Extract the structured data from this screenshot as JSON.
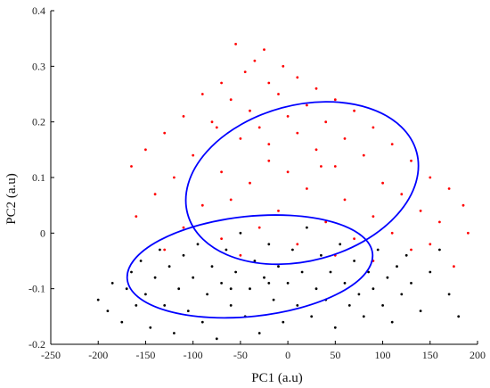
{
  "chart_data": {
    "type": "scatter",
    "title": "",
    "xlabel": "PC1 (a.u)",
    "ylabel": "PC2 (a.u)",
    "xlim": [
      -250,
      200
    ],
    "ylim": [
      -0.2,
      0.4
    ],
    "xticks": [
      -250,
      -200,
      -150,
      -100,
      -50,
      0,
      50,
      100,
      150,
      200
    ],
    "xtick_labels": [
      "-250",
      "-200",
      "-150",
      "-100",
      "-50",
      "0",
      "50",
      "100",
      "150",
      "200"
    ],
    "yticks": [
      -0.2,
      -0.1,
      0,
      0.1,
      0.2,
      0.3,
      0.4
    ],
    "ytick_labels": [
      "-0.2",
      "-0.1",
      "0",
      "0.1",
      "0.2",
      "0.3",
      "0.4"
    ],
    "grid": false,
    "legend": "none",
    "series": [
      {
        "color": "#ff0000",
        "approx_center": [
          10,
          0.08
        ],
        "approx_x_range": [
          -170,
          195
        ],
        "approx_y_range": [
          -0.05,
          0.35
        ],
        "points": [
          [
            -55,
            0.34
          ],
          [
            -25,
            0.33
          ],
          [
            -35,
            0.31
          ],
          [
            -5,
            0.3
          ],
          [
            -45,
            0.29
          ],
          [
            10,
            0.28
          ],
          [
            -70,
            0.27
          ],
          [
            -20,
            0.27
          ],
          [
            30,
            0.26
          ],
          [
            -90,
            0.25
          ],
          [
            -10,
            0.25
          ],
          [
            50,
            0.24
          ],
          [
            -60,
            0.24
          ],
          [
            20,
            0.23
          ],
          [
            -40,
            0.22
          ],
          [
            70,
            0.22
          ],
          [
            0,
            0.21
          ],
          [
            -110,
            0.21
          ],
          [
            40,
            0.2
          ],
          [
            -80,
            0.2
          ],
          [
            90,
            0.19
          ],
          [
            -30,
            0.19
          ],
          [
            10,
            0.18
          ],
          [
            -130,
            0.18
          ],
          [
            60,
            0.17
          ],
          [
            -50,
            0.17
          ],
          [
            110,
            0.16
          ],
          [
            -150,
            0.15
          ],
          [
            30,
            0.15
          ],
          [
            -100,
            0.14
          ],
          [
            80,
            0.14
          ],
          [
            -20,
            0.13
          ],
          [
            130,
            0.13
          ],
          [
            -165,
            0.12
          ],
          [
            50,
            0.12
          ],
          [
            -70,
            0.11
          ],
          [
            0,
            0.11
          ],
          [
            150,
            0.1
          ],
          [
            -120,
            0.1
          ],
          [
            100,
            0.09
          ],
          [
            -40,
            0.09
          ],
          [
            170,
            0.08
          ],
          [
            20,
            0.08
          ],
          [
            -140,
            0.07
          ],
          [
            120,
            0.07
          ],
          [
            -60,
            0.06
          ],
          [
            60,
            0.06
          ],
          [
            185,
            0.05
          ],
          [
            -90,
            0.05
          ],
          [
            140,
            0.04
          ],
          [
            -10,
            0.04
          ],
          [
            -160,
            0.03
          ],
          [
            90,
            0.03
          ],
          [
            40,
            0.02
          ],
          [
            160,
            0.02
          ],
          [
            -110,
            0.01
          ],
          [
            -30,
            0.01
          ],
          [
            110,
            0.0
          ],
          [
            190,
            0.0
          ],
          [
            -70,
            -0.01
          ],
          [
            70,
            -0.01
          ],
          [
            10,
            -0.02
          ],
          [
            150,
            -0.02
          ],
          [
            -130,
            -0.03
          ],
          [
            130,
            -0.03
          ],
          [
            -50,
            -0.04
          ],
          [
            50,
            -0.04
          ],
          [
            90,
            -0.05
          ],
          [
            175,
            -0.06
          ],
          [
            -20,
            0.16
          ],
          [
            35,
            0.12
          ],
          [
            -75,
            0.19
          ]
        ]
      },
      {
        "color": "#000000",
        "approx_center": [
          -40,
          -0.07
        ],
        "approx_x_range": [
          -200,
          185
        ],
        "approx_y_range": [
          -0.19,
          0.02
        ],
        "points": [
          [
            -200,
            -0.12
          ],
          [
            -190,
            -0.14
          ],
          [
            -185,
            -0.09
          ],
          [
            -175,
            -0.16
          ],
          [
            -170,
            -0.1
          ],
          [
            -165,
            -0.07
          ],
          [
            -160,
            -0.13
          ],
          [
            -155,
            -0.05
          ],
          [
            -150,
            -0.11
          ],
          [
            -145,
            -0.17
          ],
          [
            -140,
            -0.08
          ],
          [
            -135,
            -0.03
          ],
          [
            -130,
            -0.13
          ],
          [
            -125,
            -0.06
          ],
          [
            -120,
            -0.18
          ],
          [
            -115,
            -0.1
          ],
          [
            -110,
            -0.04
          ],
          [
            -105,
            -0.14
          ],
          [
            -100,
            -0.08
          ],
          [
            -95,
            -0.02
          ],
          [
            -90,
            -0.16
          ],
          [
            -85,
            -0.11
          ],
          [
            -80,
            -0.06
          ],
          [
            -75,
            -0.19
          ],
          [
            -70,
            -0.09
          ],
          [
            -65,
            -0.03
          ],
          [
            -60,
            -0.13
          ],
          [
            -55,
            -0.07
          ],
          [
            -50,
            0.0
          ],
          [
            -45,
            -0.15
          ],
          [
            -40,
            -0.1
          ],
          [
            -35,
            -0.05
          ],
          [
            -30,
            -0.18
          ],
          [
            -25,
            -0.08
          ],
          [
            -20,
            -0.02
          ],
          [
            -15,
            -0.12
          ],
          [
            -10,
            -0.06
          ],
          [
            -5,
            -0.16
          ],
          [
            0,
            -0.09
          ],
          [
            5,
            -0.03
          ],
          [
            10,
            -0.13
          ],
          [
            15,
            -0.07
          ],
          [
            20,
            0.01
          ],
          [
            25,
            -0.15
          ],
          [
            30,
            -0.1
          ],
          [
            35,
            -0.04
          ],
          [
            40,
            -0.12
          ],
          [
            45,
            -0.07
          ],
          [
            50,
            -0.17
          ],
          [
            55,
            -0.02
          ],
          [
            60,
            -0.09
          ],
          [
            65,
            -0.13
          ],
          [
            70,
            -0.05
          ],
          [
            75,
            -0.11
          ],
          [
            80,
            -0.15
          ],
          [
            85,
            -0.07
          ],
          [
            90,
            -0.1
          ],
          [
            95,
            -0.03
          ],
          [
            100,
            -0.13
          ],
          [
            105,
            -0.08
          ],
          [
            110,
            -0.16
          ],
          [
            115,
            -0.06
          ],
          [
            120,
            -0.11
          ],
          [
            125,
            -0.04
          ],
          [
            130,
            -0.09
          ],
          [
            140,
            -0.14
          ],
          [
            150,
            -0.07
          ],
          [
            160,
            -0.03
          ],
          [
            170,
            -0.11
          ],
          [
            180,
            -0.15
          ],
          [
            -60,
            -0.1
          ],
          [
            -20,
            -0.09
          ]
        ]
      }
    ],
    "annotations": [
      {
        "shape": "ellipse",
        "color": "#0000ff",
        "center": [
          15,
          0.09
        ],
        "semi_axis_x": 125,
        "semi_axis_y": 0.14,
        "rotation_deg": -15
      },
      {
        "shape": "ellipse",
        "color": "#0000ff",
        "center": [
          -40,
          -0.06
        ],
        "semi_axis_x": 130,
        "semi_axis_y": 0.09,
        "rotation_deg": -6
      }
    ]
  }
}
